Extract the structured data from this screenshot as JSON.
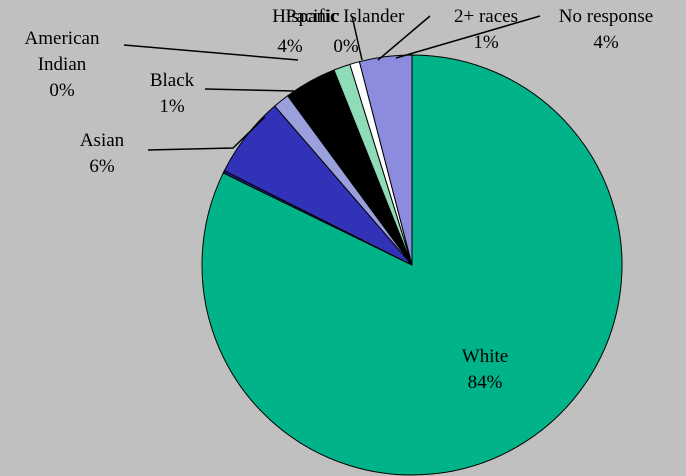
{
  "chart_data": {
    "type": "pie",
    "title": "",
    "colors": {
      "background": "#c0c0c0",
      "White": "#00b388",
      "Asian": "#3232b8",
      "Black": "#9aa0dc",
      "Hispanic": "#000000",
      "Pacific Islander": "#8edcb8",
      "2+ races": "#ffffff",
      "No response": "#8c8cde",
      "American Indian": "#1a1a8a"
    },
    "slices": [
      {
        "name": "White",
        "value": 84,
        "label": "84%"
      },
      {
        "name": "American Indian",
        "value": 0,
        "label": "0%"
      },
      {
        "name": "Asian",
        "value": 6,
        "label": "6%"
      },
      {
        "name": "Black",
        "value": 1,
        "label": "1%"
      },
      {
        "name": "Hispanic",
        "value": 4,
        "label": "4%"
      },
      {
        "name": "Pacific Islander",
        "value": 0,
        "label": "0%"
      },
      {
        "name": "2+ races",
        "value": 1,
        "label": "1%"
      },
      {
        "name": "No response",
        "value": 4,
        "label": "4%"
      }
    ]
  }
}
